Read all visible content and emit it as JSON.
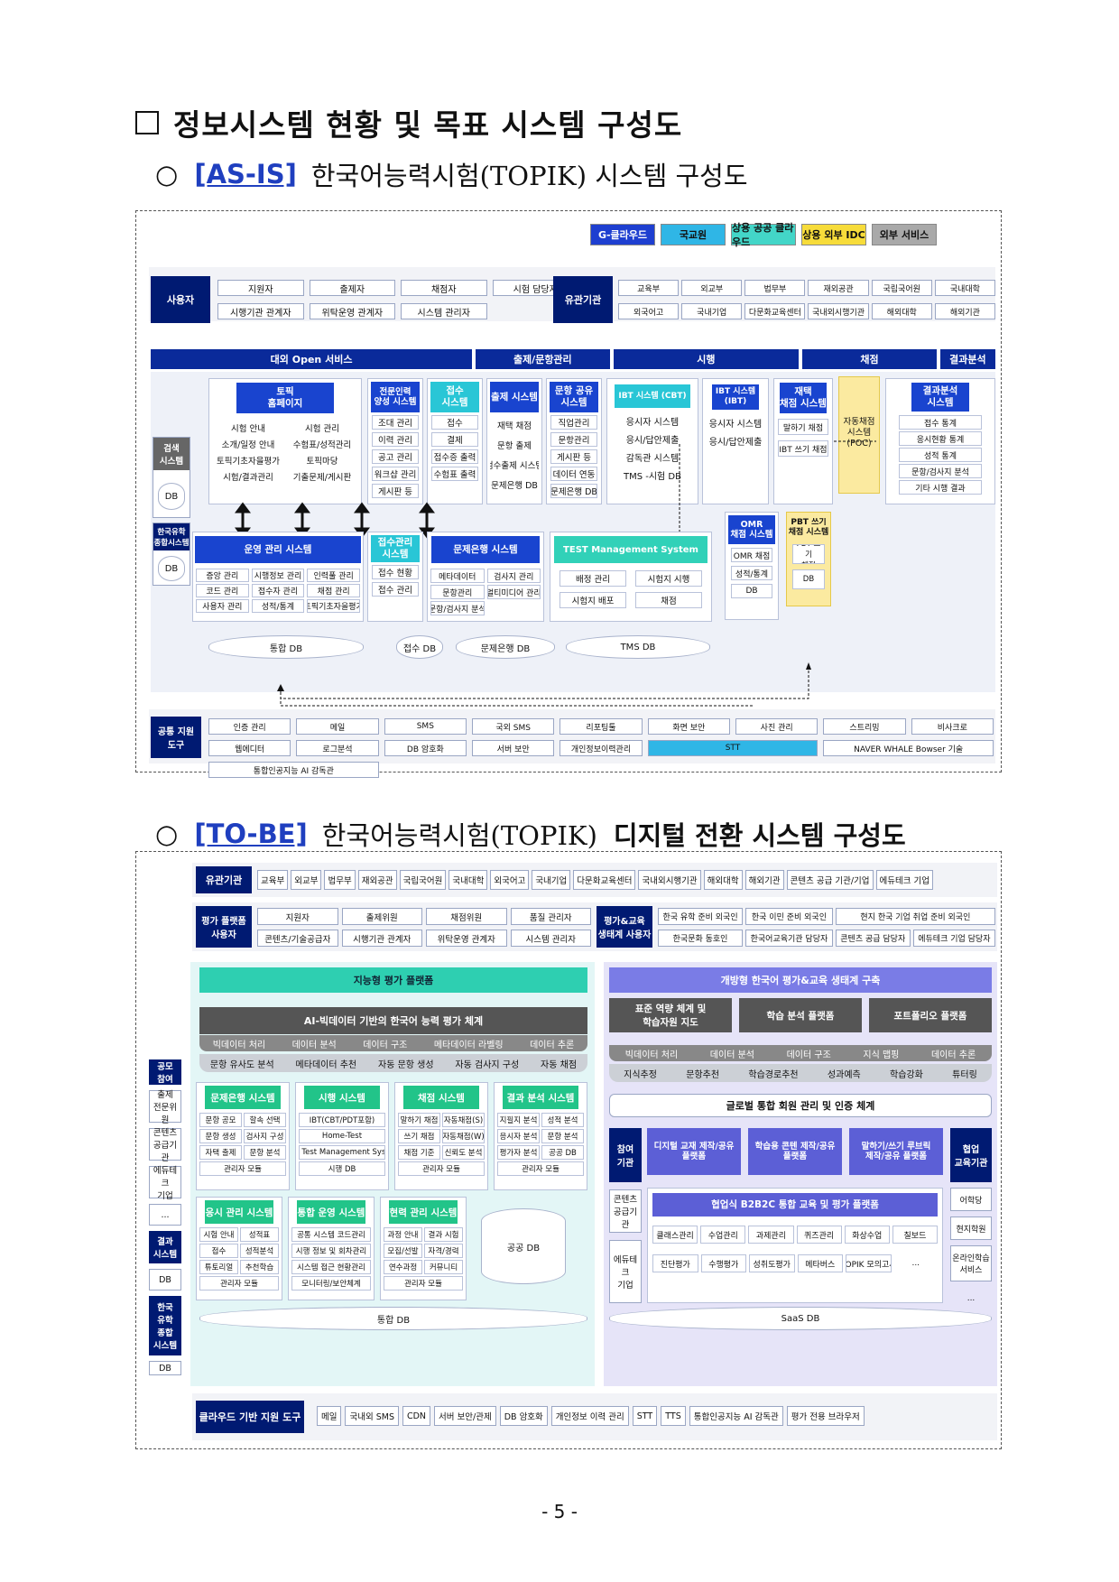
{
  "title": "정보시스템 현황 및 목표 시스템 구성도",
  "asis": {
    "tag": "[AS-IS]",
    "heading": "한국어능력시험(TOPIK) 시스템 구성도",
    "legend": [
      "G-클라우드",
      "국교원",
      "상용 공공 클라우드",
      "상용 외부 IDC",
      "외부 서비스"
    ],
    "legend_colors": [
      "#1e3fd0",
      "#2fb6e6",
      "#43d6c8",
      "#f7dc3a",
      "#a9a9a9"
    ],
    "users_label": "사용자",
    "users": [
      "지원자",
      "출제자",
      "채점자",
      "시험 담당자",
      "시행기관 관계자",
      "위탁운영 관계자",
      "시스템 관리자"
    ],
    "agencies_label": "유관기관",
    "agencies": [
      "교육부",
      "외교부",
      "법무부",
      "재외공관",
      "국립국어원",
      "국내대학",
      "외국어고",
      "국내기업",
      "다문화교육센터",
      "국내외시행기관",
      "해외대학",
      "해외기관"
    ],
    "sections": [
      "대외 Open 서비스",
      "출제/문항관리",
      "시행",
      "채점",
      "결과분석"
    ],
    "left_side": {
      "search": "검색\n시스템",
      "db": "DB",
      "kr": "한국유학\n종합시스템",
      "db2": "DB"
    },
    "boxes": {
      "topik_home": "토픽\n홈페이지",
      "expert": "전문인력\n양성 시스템",
      "receipt": "접수\n시스템",
      "question": "출제 시스템",
      "item_pool": "문항 공유\n시스템",
      "ibt_cbt": "IBT 시스템 (CBT)",
      "ibt": "IBT 시스템\n(IBT)",
      "grading": "재택\n채점 시스템",
      "auto": "자동채점\n시스템\n(POC)",
      "result": "결과분석\n시스템",
      "ops": "운영 관리 시스템",
      "receipt_mgmt": "접수관리\n시스템",
      "bank": "문제은행 시스템",
      "tms": "TEST Management System",
      "omr": "OMR\n채점 시스템",
      "pbt": "PBT 쓰기\n채점 시스템"
    },
    "home_items": [
      "시험 안내",
      "시험 관리",
      "소개/일정 안내",
      "수험표/성적관리",
      "토픽기초자을평가",
      "토픽마당",
      "시험/결과관리",
      "기출문제/게시판"
    ],
    "expert_items": [
      "조대 관리",
      "이력 관리",
      "공고 관리",
      "워크샵 관리",
      "게시판 등"
    ],
    "receipt_items": [
      "접수",
      "결제",
      "접수증 출력",
      "수험표 출력"
    ],
    "question_items": [
      "재택 채점",
      "문항 출제",
      "검수출제 시스템",
      "문제은행 DB"
    ],
    "pool_items": [
      "직업관리",
      "문항관리",
      "게시판 등",
      "데이터 연동",
      "문제은행 DB"
    ],
    "cbt_items": [
      "응시자 시스템",
      "응시/답안제출",
      "감독관 시스템",
      "TMS -시험 DB"
    ],
    "ibt_items": [
      "응시자 시스템",
      "응시/답안제출"
    ],
    "grade_items": [
      "말하기 채점",
      "IBT 쓰기 채점"
    ],
    "result_items": [
      "접수 통계",
      "응시현황 통계",
      "성적 통계",
      "문항/검사지 분석",
      "기타 시행 결과"
    ],
    "ops_items": [
      "증앙 관리",
      "시행정보 관리",
      "인력풀 관리",
      "코드 관리",
      "접수자 관리",
      "채점 관리",
      "사용자 관리",
      "성적/통계",
      "토픽기초자을평가"
    ],
    "receipt_mgmt_items": [
      "접수 현황",
      "접수 관리"
    ],
    "bank_items": [
      "메타데이터",
      "검사지 관리",
      "문항관리",
      "멀티미디어 관리",
      "문항/검사지 분석"
    ],
    "tms_items": [
      "배정 관리",
      "시험지 시행",
      "시험지 배포",
      "채점"
    ],
    "omr_items": [
      "OMR 채점",
      "성적/통계",
      "DB"
    ],
    "pbt_items": [
      "PBT 쓰기\n채점",
      "DB"
    ],
    "dbs": [
      "통합 DB",
      "접수 DB",
      "문제은행 DB",
      "TMS DB"
    ],
    "tools_label": "공통 지원\n도구",
    "tools": [
      "인증 관리",
      "메일",
      "SMS",
      "국외 SMS",
      "리포팅툴",
      "화면 보안",
      "사진 관리",
      "스트리밍",
      "비사크로",
      "웹에디터",
      "로그분석",
      "DB 암호화",
      "서버 보안",
      "개인정보이력관리",
      "STT",
      "NAVER WHALE Bowser 기술",
      "통합인공지능 AI 감독관"
    ]
  },
  "tobe": {
    "tag": "[TO-BE]",
    "heading_light": "한국어능력시험(TOPIK)",
    "heading_bold": "디지털 전환 시스템 구성도",
    "agencies_label": "유관기관",
    "agencies": [
      "교육부",
      "외교부",
      "법무부",
      "재외공관",
      "국립국어원",
      "국내대학",
      "외국어고",
      "국내기업",
      "다문화교육센터",
      "국내외시행기관",
      "해외대학",
      "해외기관",
      "콘텐츠 공급 기관/기업",
      "에듀테크 기업"
    ],
    "platform_label": "평가 플랫폼\n사용자",
    "platform_users": [
      "지원자",
      "출제위원",
      "채점위원",
      "품질 관리자",
      "콘텐츠/기술공급자",
      "시행기관 관계자",
      "위탁운영 관계자",
      "시스템 관리자"
    ],
    "eco_label": "평가&교육\n생태계 사용자",
    "eco_users": [
      "한국 유학 준비 외국인",
      "한국 이민 준비 외국인",
      "현지 한국 기업 취업 준비 외국인",
      "한국문화 동호인",
      "한국어교육기관 담당자",
      "콘텐츠 공급 담당자",
      "에듀테크 기업 담당자"
    ],
    "left": [
      "공모\n참여",
      "출제\n전문위원",
      "콘텐츠\n공급기관",
      "에듀테크\n기업",
      "...",
      "결과\n시스템",
      "DB",
      "한국\n유학\n종합\n시스템",
      "DB"
    ],
    "smart": "지능형 평가 플랫폼",
    "ai_bar": "AI-빅데이터 기반의 한국어 능력 평가 체계",
    "ai_row1": [
      "빅데이터 처리",
      "데이터 분석",
      "데이터 구조",
      "메타데이터 라벨링",
      "데이터 추론"
    ],
    "ai_row2": [
      "문항 유사도 분석",
      "메타데이터 추천",
      "자동 문항 생성",
      "자동 검사지 구성",
      "자동 채점"
    ],
    "eco": "개방형 한국어 평가&교육 생태계 구축",
    "eco_top": [
      "표준 역량 체계 및\n학습자원 지도",
      "학습 분석 플랫폼",
      "포트폴리오 플랫폼"
    ],
    "eco_row1": [
      "빅데이터 처리",
      "데이터 분석",
      "데이터 구조",
      "지식 맵핑",
      "데이터 추론"
    ],
    "eco_row2": [
      "지식추정",
      "문항추천",
      "학습경로추천",
      "성과예측",
      "학습강화",
      "튜터링"
    ],
    "member": "글로벌 통합 회원 관리 및 인증 체계",
    "sys_row1": [
      {
        "name": "문제은행 시스템",
        "items": [
          "문항 공모",
          "할속 선택",
          "문항 생성",
          "검사지 구성",
          "자택 출제",
          "문항 분석",
          "관리자 모듈"
        ]
      },
      {
        "name": "시행 시스템",
        "items": [
          "IBT(CBT/PDT포함)",
          "Home-Test",
          "TMS Test Management System",
          "시행 DB"
        ]
      },
      {
        "name": "채점 시스템",
        "items": [
          "말하기 채점",
          "자동채점(S)",
          "쓰기 채점",
          "자동채점(W)",
          "채점 기준",
          "신뢰도 분석",
          "관리자 모듈"
        ]
      },
      {
        "name": "결과 분석 시스템",
        "items": [
          "지필지 분석",
          "성적 분석",
          "응시자 분석",
          "문항 분석",
          "평가자 분석",
          "공공 DB",
          "관리자 모듈"
        ]
      }
    ],
    "sys_row2": [
      {
        "name": "응시 관리 시스템",
        "items": [
          "시험 안내",
          "성적표",
          "접수",
          "성적분석",
          "튜토리얼",
          "추천학습",
          "관리자 모듈"
        ]
      },
      {
        "name": "통합 운영 시스템",
        "items": [
          "공통 시스템 코드관리",
          "시행 정보 및 회차관리",
          "시스템 접근 현황관리",
          "모니터링/보안체계"
        ]
      },
      {
        "name": "현력 관리 시스템",
        "items": [
          "과정 안내",
          "결과 시험",
          "모집/선발",
          "자격/경력",
          "연수과정",
          "커뮤니티",
          "관리자 모듈"
        ]
      }
    ],
    "public_db": "공공 DB",
    "integrated_db": "통합 DB",
    "participation": "참여\n기관",
    "eco_boxes": [
      "디지털 교재 제작/공유\n플랫폼",
      "학습용 콘텐 제작/공유\n플랫폼",
      "말하기/쓰기 루브릭\n제작/공유 플랫폼"
    ],
    "eco_right": "협업\n교육기관",
    "content": "콘텐츠\n공급기관",
    "edtech": "에듀테크\n기업",
    "b2b": "협업식 B2B2C 통합 교육 및 평가 플랫폼",
    "b2b_row1": [
      "클래스관리",
      "수업관리",
      "과제관리",
      "퀴즈관리",
      "화상수업",
      "칠보드"
    ],
    "b2b_row2": [
      "진단평가",
      "수행평가",
      "성취도평가",
      "메타버스",
      "TOPIK 모의고사",
      "..."
    ],
    "right_side": [
      "어학당",
      "현지학원",
      "온라인학습\n서비스",
      "..."
    ],
    "saas_db": "SaaS DB",
    "cloud": "클라우드 기반 지원 도구",
    "tools": [
      "메일",
      "국내외 SMS",
      "CDN",
      "서버 보안/관제",
      "DB 암호화",
      "개인정보 이력 관리",
      "STT",
      "TTS",
      "통합인공지능 AI 감독관",
      "평가 전용 브라우저"
    ]
  },
  "page_number": "- 5 -"
}
